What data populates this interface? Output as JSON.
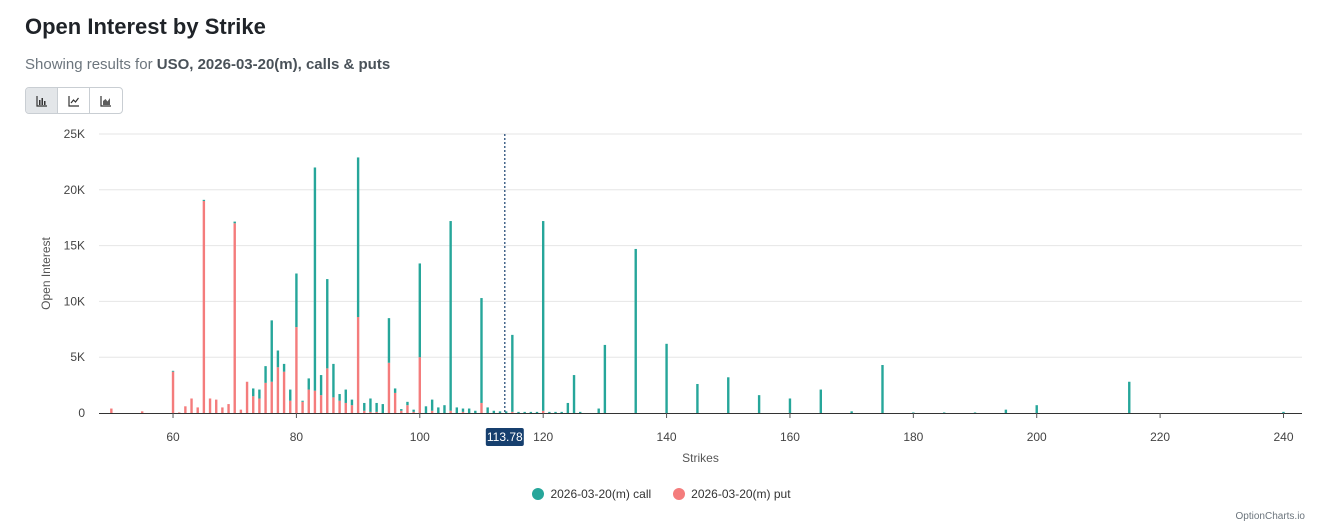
{
  "header": {
    "title": "Open Interest by Strike",
    "subtitle_prefix": "Showing results for ",
    "subtitle_bold": "USO, 2026-03-20(m), calls & puts"
  },
  "view_toggle": [
    {
      "icon": "bar-chart-icon",
      "active": true
    },
    {
      "icon": "line-chart-icon",
      "active": false
    },
    {
      "icon": "area-chart-icon",
      "active": false
    }
  ],
  "colors": {
    "call": "#26a69a",
    "put": "#f47c7c",
    "price_marker": "#163f6e",
    "grid": "#e6e6e6"
  },
  "credit": "OptionCharts.io",
  "chart_data": {
    "type": "bar",
    "stacked": true,
    "xlabel": "Strikes",
    "ylabel": "Open Interest",
    "xlim": [
      48,
      243
    ],
    "ylim": [
      0,
      25000
    ],
    "x_ticks": [
      "60",
      "80",
      "100",
      "120",
      "140",
      "160",
      "180",
      "200",
      "220",
      "240"
    ],
    "y_ticks": [
      "0",
      "5K",
      "10K",
      "15K",
      "20K",
      "25K"
    ],
    "grid": true,
    "legend_position": "bottom-center",
    "current_price": {
      "value": 113.78,
      "label": "113.78"
    },
    "series": [
      {
        "name": "2026-03-20(m) call",
        "points": [
          [
            50,
            0
          ],
          [
            55,
            0
          ],
          [
            60,
            80
          ],
          [
            61,
            0
          ],
          [
            62,
            0
          ],
          [
            63,
            0
          ],
          [
            64,
            0
          ],
          [
            65,
            100
          ],
          [
            66,
            0
          ],
          [
            67,
            0
          ],
          [
            68,
            0
          ],
          [
            69,
            0
          ],
          [
            70,
            150
          ],
          [
            71,
            0
          ],
          [
            72,
            0
          ],
          [
            73,
            700
          ],
          [
            74,
            800
          ],
          [
            75,
            1500
          ],
          [
            76,
            5500
          ],
          [
            77,
            1500
          ],
          [
            78,
            700
          ],
          [
            79,
            1000
          ],
          [
            80,
            4800
          ],
          [
            81,
            100
          ],
          [
            82,
            1000
          ],
          [
            83,
            20000
          ],
          [
            84,
            1800
          ],
          [
            85,
            8000
          ],
          [
            86,
            3000
          ],
          [
            87,
            600
          ],
          [
            88,
            1200
          ],
          [
            89,
            500
          ],
          [
            90,
            14300
          ],
          [
            91,
            700
          ],
          [
            92,
            1200
          ],
          [
            93,
            800
          ],
          [
            94,
            800
          ],
          [
            95,
            4000
          ],
          [
            96,
            400
          ],
          [
            97,
            150
          ],
          [
            98,
            300
          ],
          [
            99,
            200
          ],
          [
            100,
            8400
          ],
          [
            101,
            600
          ],
          [
            102,
            1000
          ],
          [
            103,
            500
          ],
          [
            104,
            700
          ],
          [
            105,
            17000
          ],
          [
            106,
            500
          ],
          [
            107,
            300
          ],
          [
            108,
            400
          ],
          [
            109,
            200
          ],
          [
            110,
            9400
          ],
          [
            111,
            500
          ],
          [
            112,
            200
          ],
          [
            113,
            150
          ],
          [
            114,
            150
          ],
          [
            115,
            6900
          ],
          [
            116,
            100
          ],
          [
            117,
            100
          ],
          [
            118,
            100
          ],
          [
            119,
            100
          ],
          [
            120,
            17000
          ],
          [
            121,
            100
          ],
          [
            122,
            100
          ],
          [
            123,
            100
          ],
          [
            124,
            900
          ],
          [
            125,
            3400
          ],
          [
            126,
            100
          ],
          [
            129,
            400
          ],
          [
            130,
            6100
          ],
          [
            135,
            14700
          ],
          [
            140,
            6200
          ],
          [
            145,
            2600
          ],
          [
            150,
            3200
          ],
          [
            155,
            1600
          ],
          [
            160,
            1300
          ],
          [
            165,
            2100
          ],
          [
            170,
            150
          ],
          [
            175,
            4300
          ],
          [
            180,
            50
          ],
          [
            185,
            50
          ],
          [
            190,
            50
          ],
          [
            195,
            300
          ],
          [
            200,
            700
          ],
          [
            215,
            2800
          ],
          [
            240,
            100
          ]
        ]
      },
      {
        "name": "2026-03-20(m) put",
        "points": [
          [
            50,
            400
          ],
          [
            55,
            150
          ],
          [
            60,
            3700
          ],
          [
            61,
            50
          ],
          [
            62,
            600
          ],
          [
            63,
            1300
          ],
          [
            64,
            500
          ],
          [
            65,
            19000
          ],
          [
            66,
            1300
          ],
          [
            67,
            1200
          ],
          [
            68,
            500
          ],
          [
            69,
            800
          ],
          [
            70,
            17000
          ],
          [
            71,
            300
          ],
          [
            72,
            2800
          ],
          [
            73,
            1500
          ],
          [
            74,
            1300
          ],
          [
            75,
            2700
          ],
          [
            76,
            2800
          ],
          [
            77,
            4100
          ],
          [
            78,
            3700
          ],
          [
            79,
            1100
          ],
          [
            80,
            7700
          ],
          [
            81,
            1000
          ],
          [
            82,
            2100
          ],
          [
            83,
            2000
          ],
          [
            84,
            1600
          ],
          [
            85,
            4000
          ],
          [
            86,
            1400
          ],
          [
            87,
            1100
          ],
          [
            88,
            900
          ],
          [
            89,
            700
          ],
          [
            90,
            8600
          ],
          [
            91,
            200
          ],
          [
            92,
            100
          ],
          [
            93,
            100
          ],
          [
            94,
            0
          ],
          [
            95,
            4500
          ],
          [
            96,
            1800
          ],
          [
            97,
            200
          ],
          [
            98,
            700
          ],
          [
            99,
            100
          ],
          [
            100,
            5000
          ],
          [
            101,
            0
          ],
          [
            102,
            200
          ],
          [
            103,
            0
          ],
          [
            104,
            0
          ],
          [
            105,
            200
          ],
          [
            106,
            0
          ],
          [
            107,
            100
          ],
          [
            108,
            0
          ],
          [
            109,
            0
          ],
          [
            110,
            900
          ],
          [
            111,
            0
          ],
          [
            112,
            0
          ],
          [
            113,
            0
          ],
          [
            114,
            0
          ],
          [
            115,
            100
          ],
          [
            116,
            0
          ],
          [
            117,
            0
          ],
          [
            118,
            0
          ],
          [
            119,
            0
          ],
          [
            120,
            200
          ],
          [
            121,
            0
          ],
          [
            122,
            0
          ],
          [
            123,
            0
          ],
          [
            124,
            0
          ],
          [
            125,
            0
          ],
          [
            126,
            0
          ],
          [
            129,
            0
          ],
          [
            130,
            0
          ],
          [
            135,
            0
          ],
          [
            140,
            0
          ],
          [
            145,
            0
          ],
          [
            150,
            0
          ],
          [
            155,
            0
          ],
          [
            160,
            0
          ],
          [
            165,
            0
          ],
          [
            170,
            0
          ],
          [
            175,
            0
          ],
          [
            180,
            0
          ],
          [
            185,
            0
          ],
          [
            190,
            0
          ],
          [
            195,
            0
          ],
          [
            200,
            0
          ],
          [
            215,
            0
          ],
          [
            240,
            0
          ]
        ]
      }
    ]
  }
}
